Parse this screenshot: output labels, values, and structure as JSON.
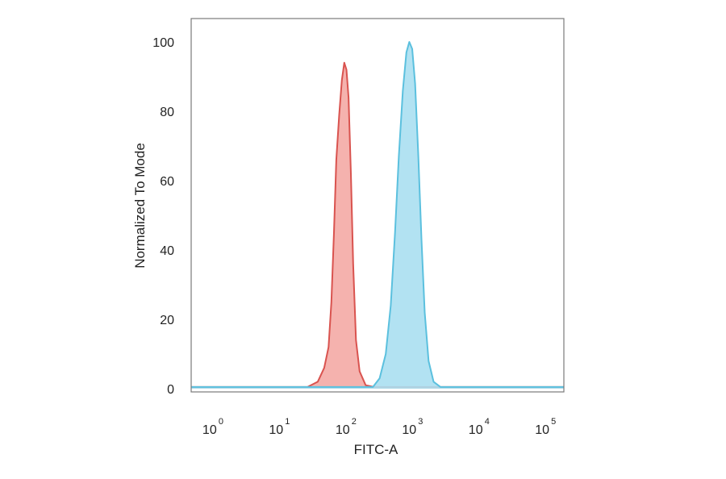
{
  "chart_data": {
    "type": "area",
    "title": "",
    "xlabel": "FITC-A",
    "ylabel": "Normalized To Mode",
    "x_scale": "log",
    "xlim": [
      0.5,
      200000
    ],
    "ylim": [
      0,
      100
    ],
    "y_ticks": [
      0,
      20,
      40,
      60,
      80,
      100
    ],
    "x_ticks": [
      {
        "base": "10",
        "exp": "0",
        "value": 1
      },
      {
        "base": "10",
        "exp": "1",
        "value": 10
      },
      {
        "base": "10",
        "exp": "2",
        "value": 100
      },
      {
        "base": "10",
        "exp": "3",
        "value": 1000
      },
      {
        "base": "10",
        "exp": "4",
        "value": 10000
      },
      {
        "base": "10",
        "exp": "5",
        "value": 100000
      }
    ],
    "grid": false,
    "legend": "none",
    "series": [
      {
        "color": "#d9534f",
        "fill": "#f4aaa5",
        "points": [
          [
            0.5,
            0.5
          ],
          [
            28,
            0.5
          ],
          [
            40,
            2
          ],
          [
            50,
            6
          ],
          [
            58,
            12
          ],
          [
            64,
            25
          ],
          [
            70,
            45
          ],
          [
            76,
            66
          ],
          [
            84,
            79
          ],
          [
            92,
            89
          ],
          [
            100,
            94
          ],
          [
            108,
            92
          ],
          [
            116,
            84
          ],
          [
            126,
            62
          ],
          [
            136,
            36
          ],
          [
            150,
            14
          ],
          [
            170,
            5
          ],
          [
            210,
            1
          ],
          [
            280,
            0.5
          ],
          [
            200000,
            0.5
          ]
        ]
      },
      {
        "color": "#5bc0de",
        "fill": "#aadff1",
        "points": [
          [
            0.5,
            0.5
          ],
          [
            270,
            0.5
          ],
          [
            340,
            3
          ],
          [
            420,
            10
          ],
          [
            500,
            24
          ],
          [
            580,
            45
          ],
          [
            660,
            67
          ],
          [
            760,
            86
          ],
          [
            860,
            97
          ],
          [
            950,
            100
          ],
          [
            1050,
            98
          ],
          [
            1160,
            88
          ],
          [
            1300,
            67
          ],
          [
            1450,
            43
          ],
          [
            1620,
            22
          ],
          [
            1850,
            8
          ],
          [
            2200,
            2
          ],
          [
            2800,
            0.5
          ],
          [
            200000,
            0.5
          ]
        ]
      }
    ]
  }
}
